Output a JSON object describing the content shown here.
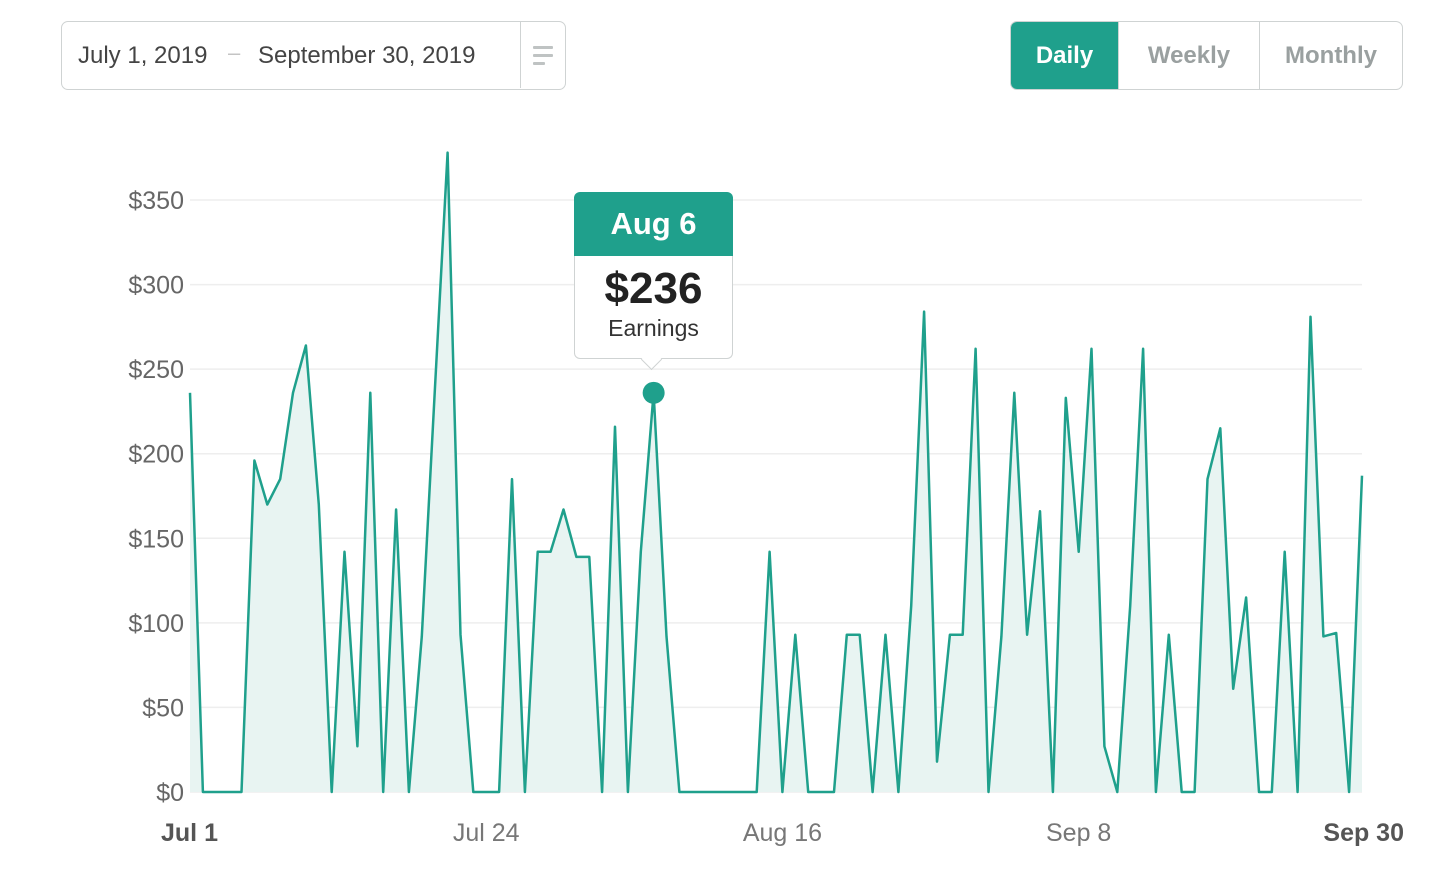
{
  "date_range": {
    "start": "July 1, 2019",
    "separator": "–",
    "end": "September 30, 2019"
  },
  "granularity": {
    "options": [
      "Daily",
      "Weekly",
      "Monthly"
    ],
    "selected": "Daily"
  },
  "colors": {
    "accent": "#1fa08c",
    "fill": "#e8f4f2",
    "grid": "#eeeeee"
  },
  "tooltip": {
    "date": "Aug 6",
    "value": "$236",
    "label": "Earnings"
  },
  "chart_data": {
    "type": "area",
    "series": [
      {
        "values": [
          236,
          0,
          0,
          0,
          0,
          196,
          170,
          185,
          236,
          264,
          170,
          0,
          142,
          27,
          236,
          0,
          167,
          0,
          92,
          236,
          378,
          93,
          0,
          0,
          0,
          185,
          0,
          142,
          142,
          167,
          139,
          139,
          0,
          216,
          0,
          142,
          236,
          92,
          0,
          0,
          0,
          0,
          0,
          0,
          0,
          142,
          0,
          93,
          0,
          0,
          0,
          93,
          93,
          0,
          93,
          0,
          110,
          284,
          18,
          93,
          93,
          262,
          0,
          92,
          236,
          93,
          166,
          0,
          233,
          142,
          262,
          27,
          0,
          110,
          262,
          0,
          93,
          0,
          0,
          185,
          215,
          61,
          115,
          0,
          0,
          142,
          0,
          281,
          92,
          94,
          0,
          187
        ]
      }
    ],
    "x_tick_labels": [
      "Jul 1",
      "Jul 24",
      "Aug 16",
      "Sep 8",
      "Sep 30"
    ],
    "x_tick_index": [
      0,
      23,
      46,
      69,
      91
    ],
    "x_tick_bold": [
      true,
      false,
      false,
      false,
      true
    ],
    "y_ticks": [
      "$0",
      "$50",
      "$100",
      "$150",
      "$200",
      "$250",
      "$300",
      "$350"
    ],
    "ylim": [
      0,
      350
    ],
    "highlight_index": 36,
    "grid": true
  }
}
